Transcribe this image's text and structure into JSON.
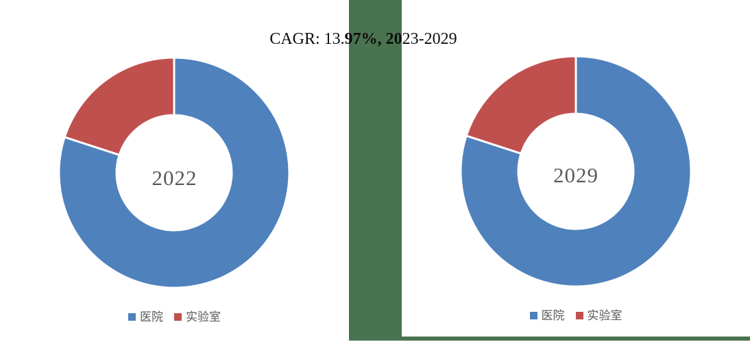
{
  "page": {
    "background_color": "#ffffff",
    "backdrop_green_color": "#4a7350"
  },
  "title": {
    "full": "CAGR: 13.97%, 2023-2029",
    "seg1": "CAGR: 13.",
    "seg_bold": "97%, 20",
    "seg2": "23-2029"
  },
  "legend": {
    "items": [
      {
        "label": "医院",
        "color": "#4f81bd"
      },
      {
        "label": "实验室",
        "color": "#c0504d"
      }
    ]
  },
  "chart_data": [
    {
      "type": "pie",
      "subtype": "donut",
      "center_label": "2022",
      "categories": [
        "医院",
        "实验室"
      ],
      "values": [
        80,
        20
      ],
      "unit": "% share (estimated from arc angles)",
      "colors": [
        "#4f81bd",
        "#c0504d"
      ],
      "start_angle_deg": 0,
      "direction": "clockwise",
      "hole_ratio": 0.5,
      "slice_separator_color": "#ffffff",
      "legend_position": "bottom",
      "legend_entries": [
        "医院",
        "实验室"
      ]
    },
    {
      "type": "pie",
      "subtype": "donut",
      "center_label": "2029",
      "categories": [
        "医院",
        "实验室"
      ],
      "values": [
        80,
        20
      ],
      "unit": "% share (estimated from arc angles)",
      "colors": [
        "#4f81bd",
        "#c0504d"
      ],
      "start_angle_deg": 0,
      "direction": "clockwise",
      "hole_ratio": 0.5,
      "slice_separator_color": "#ffffff",
      "legend_position": "bottom",
      "legend_entries": [
        "医院",
        "实验室"
      ]
    }
  ],
  "geometry": {
    "outer_radius": 168,
    "inner_radius": 84,
    "separator_width": 3
  }
}
